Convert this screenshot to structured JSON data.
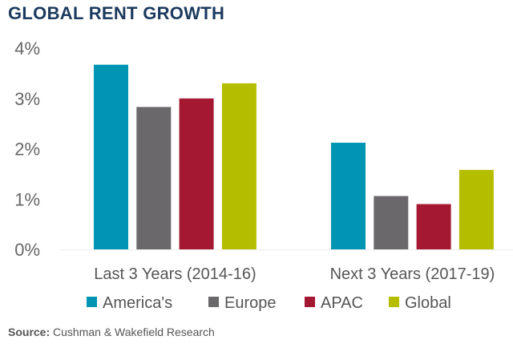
{
  "chart_data": {
    "type": "bar",
    "title": "GLOBAL RENT GROWTH",
    "categories": [
      "Last 3 Years (2014-16)",
      "Next 3 Years (2017-19)"
    ],
    "series": [
      {
        "name": "America's",
        "color": "#0095b3",
        "values": [
          3.67,
          2.12
        ]
      },
      {
        "name": "Europe",
        "color": "#6b686b",
        "values": [
          2.83,
          1.06
        ]
      },
      {
        "name": "APAC",
        "color": "#a51832",
        "values": [
          3.0,
          0.9
        ]
      },
      {
        "name": "Global",
        "color": "#b5bd00",
        "values": [
          3.3,
          1.58
        ]
      }
    ],
    "yticks": [
      "0%",
      "1%",
      "2%",
      "3%",
      "4%"
    ],
    "ylim": [
      0,
      4
    ],
    "xlabel": "",
    "ylabel": "",
    "grid": false,
    "legend": "bottom"
  },
  "source": {
    "label": "Source:",
    "text": " Cushman & Wakefield Research"
  }
}
